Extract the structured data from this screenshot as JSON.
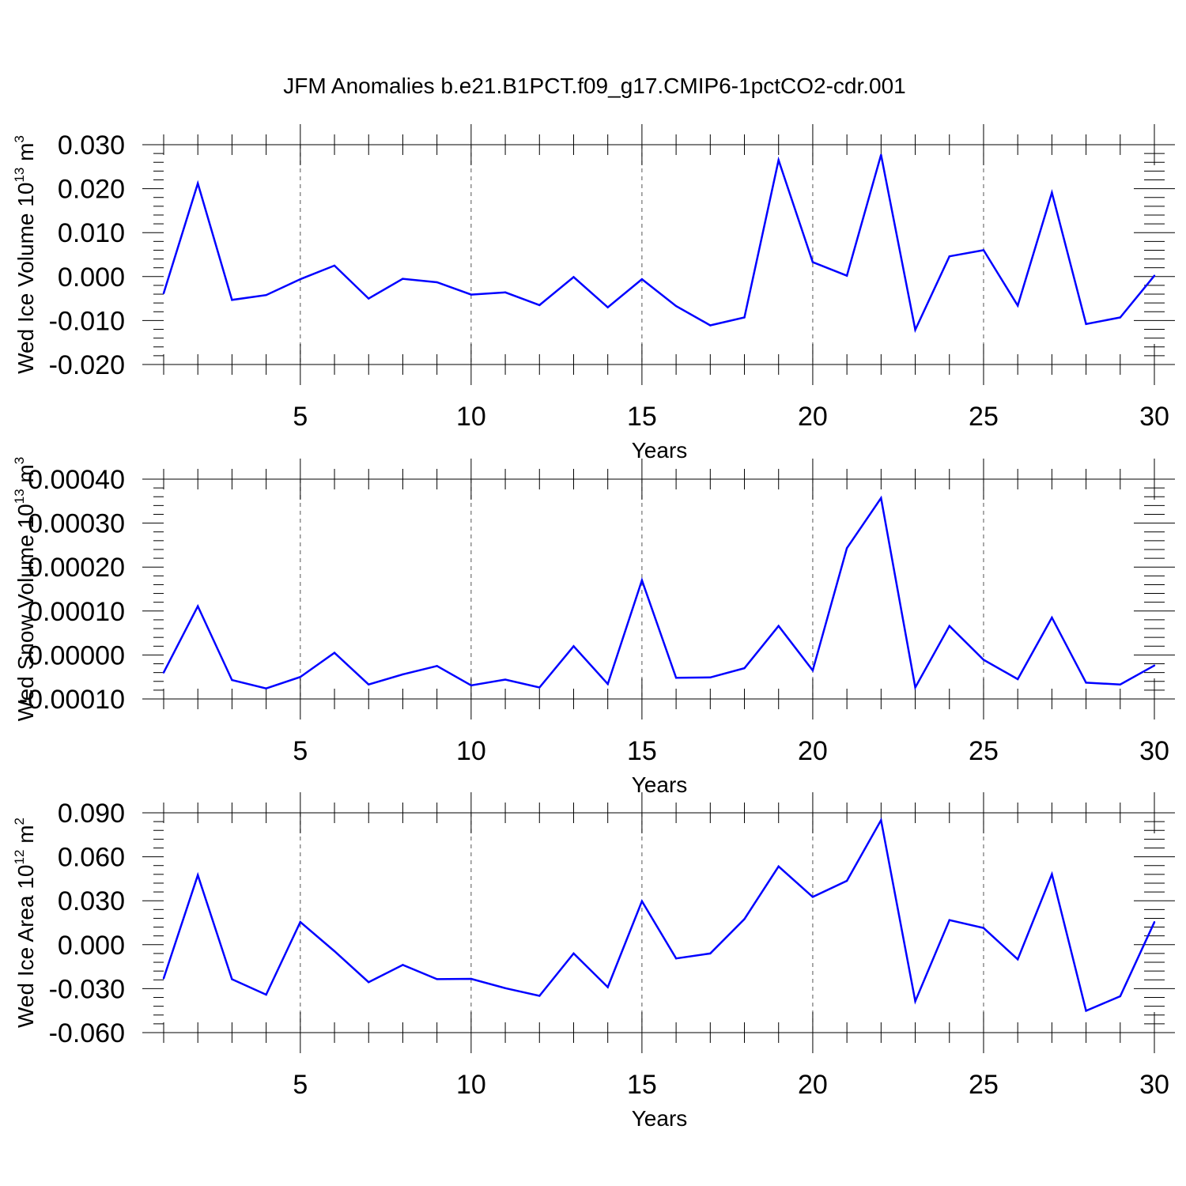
{
  "chart_data": {
    "title": "JFM Anomalies b.e21.B1PCT.f09_g17.CMIP6-1pctCO2-cdr.001",
    "type": "line",
    "panels": [
      {
        "type": "line",
        "xlabel": "Years",
        "ylabel_parts": [
          "Wed Ice Volume 10",
          "13",
          " m",
          "3"
        ],
        "xlim": [
          1,
          30
        ],
        "ylim": [
          -0.02,
          0.03
        ],
        "xticks": [
          5,
          10,
          15,
          20,
          25,
          30
        ],
        "xtick_labels": [
          "5",
          "10",
          "15",
          "20",
          "25",
          "30"
        ],
        "yticks": [
          -0.02,
          -0.01,
          0.0,
          0.01,
          0.02,
          0.03
        ],
        "ytick_labels": [
          "-0.020",
          "-0.010",
          "0.000",
          "0.010",
          "0.020",
          "0.030"
        ],
        "line_color": "#0000ff",
        "x": [
          1,
          2,
          3,
          4,
          5,
          6,
          7,
          8,
          9,
          10,
          11,
          12,
          13,
          14,
          15,
          16,
          17,
          18,
          19,
          20,
          21,
          22,
          23,
          24,
          25,
          26,
          27,
          28,
          29,
          30
        ],
        "values": [
          -0.0038,
          0.0212,
          -0.0053,
          -0.0042,
          -0.0006,
          0.0025,
          -0.005,
          -0.0005,
          -0.0013,
          -0.0041,
          -0.0036,
          -0.0065,
          -0.0001,
          -0.007,
          -0.0006,
          -0.0067,
          -0.0111,
          -0.0093,
          0.0265,
          0.0033,
          0.0002,
          0.0277,
          -0.0121,
          0.0046,
          0.006,
          -0.0066,
          0.0191,
          -0.0108,
          -0.0093,
          0.0002
        ]
      },
      {
        "type": "line",
        "xlabel": "Years",
        "ylabel_parts": [
          "Wed Snow Volume 10",
          "13",
          " m",
          "3"
        ],
        "xlim": [
          1,
          30
        ],
        "ylim": [
          -0.0001,
          0.0004
        ],
        "xticks": [
          5,
          10,
          15,
          20,
          25,
          30
        ],
        "xtick_labels": [
          "5",
          "10",
          "15",
          "20",
          "25",
          "30"
        ],
        "yticks": [
          -0.0001,
          0.0,
          0.0001,
          0.0002,
          0.0003,
          0.0004
        ],
        "ytick_labels": [
          "-0.00010",
          "0.00000",
          "0.00010",
          "0.00020",
          "0.00030",
          "0.00040"
        ],
        "line_color": "#0000ff",
        "x": [
          1,
          2,
          3,
          4,
          5,
          6,
          7,
          8,
          9,
          10,
          11,
          12,
          13,
          14,
          15,
          16,
          17,
          18,
          19,
          20,
          21,
          22,
          23,
          24,
          25,
          26,
          27,
          28,
          29,
          30
        ],
        "values": [
          -4e-05,
          0.000111,
          -5.7e-05,
          -7.6e-05,
          -5e-05,
          5e-06,
          -6.7e-05,
          -4.4e-05,
          -2.5e-05,
          -6.9e-05,
          -5.6e-05,
          -7.4e-05,
          2e-05,
          -6.6e-05,
          0.00017,
          -5.2e-05,
          -5.1e-05,
          -3e-05,
          6.6e-05,
          -3.5e-05,
          0.000243,
          0.000357,
          -7.4e-05,
          6.6e-05,
          -1.1e-05,
          -5.5e-05,
          8.5e-05,
          -6.3e-05,
          -6.7e-05,
          -2.4e-05
        ]
      },
      {
        "type": "line",
        "xlabel": "Years",
        "ylabel_parts": [
          "Wed Ice Area 10",
          "12",
          " m",
          "2"
        ],
        "xlim": [
          1,
          30
        ],
        "ylim": [
          -0.06,
          0.09
        ],
        "xticks": [
          5,
          10,
          15,
          20,
          25,
          30
        ],
        "xtick_labels": [
          "5",
          "10",
          "15",
          "20",
          "25",
          "30"
        ],
        "yticks": [
          -0.06,
          -0.03,
          0.0,
          0.03,
          0.06,
          0.09
        ],
        "ytick_labels": [
          "-0.060",
          "-0.030",
          "0.000",
          "0.030",
          "0.060",
          "0.090"
        ],
        "line_color": "#0000ff",
        "x": [
          1,
          2,
          3,
          4,
          5,
          6,
          7,
          8,
          9,
          10,
          11,
          12,
          13,
          14,
          15,
          16,
          17,
          18,
          19,
          20,
          21,
          22,
          23,
          24,
          25,
          26,
          27,
          28,
          29,
          30
        ],
        "values": [
          -0.023,
          0.0475,
          -0.0236,
          -0.0341,
          0.0155,
          -0.0044,
          -0.0256,
          -0.0138,
          -0.0235,
          -0.0233,
          -0.0297,
          -0.0349,
          -0.006,
          -0.029,
          0.0297,
          -0.0094,
          -0.006,
          0.0175,
          0.0534,
          0.0326,
          0.0436,
          0.085,
          -0.0386,
          0.0168,
          0.0114,
          -0.01,
          0.0481,
          -0.0451,
          -0.0352,
          0.0154
        ]
      }
    ]
  }
}
